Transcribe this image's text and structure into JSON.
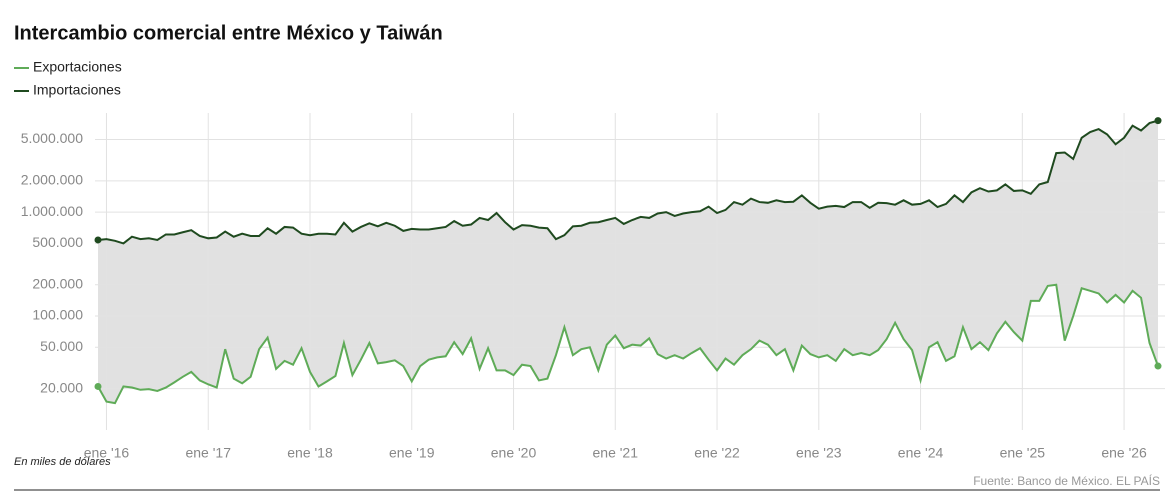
{
  "chart_data": {
    "type": "line",
    "title": "Intercambio comercial entre México y Taiwán",
    "note": "En miles de dólares",
    "source": "Fuente: Banco de México. EL PAÍS",
    "log_scale": true,
    "grid": true,
    "legend": "top-left",
    "fill_between": "#e1e1e1",
    "x": [
      "2015-12",
      "2016-01",
      "2016-02",
      "2016-03",
      "2016-04",
      "2016-05",
      "2016-06",
      "2016-07",
      "2016-08",
      "2016-09",
      "2016-10",
      "2016-11",
      "2016-12",
      "2017-01",
      "2017-02",
      "2017-03",
      "2017-04",
      "2017-05",
      "2017-06",
      "2017-07",
      "2017-08",
      "2017-09",
      "2017-10",
      "2017-11",
      "2017-12",
      "2018-01",
      "2018-02",
      "2018-03",
      "2018-04",
      "2018-05",
      "2018-06",
      "2018-07",
      "2018-08",
      "2018-09",
      "2018-10",
      "2018-11",
      "2018-12",
      "2019-01",
      "2019-02",
      "2019-03",
      "2019-04",
      "2019-05",
      "2019-06",
      "2019-07",
      "2019-08",
      "2019-09",
      "2019-10",
      "2019-11",
      "2019-12",
      "2020-01",
      "2020-02",
      "2020-03",
      "2020-04",
      "2020-05",
      "2020-06",
      "2020-07",
      "2020-08",
      "2020-09",
      "2020-10",
      "2020-11",
      "2020-12",
      "2021-01",
      "2021-02",
      "2021-03",
      "2021-04",
      "2021-05",
      "2021-06",
      "2021-07",
      "2021-08",
      "2021-09",
      "2021-10",
      "2021-11",
      "2021-12",
      "2022-01",
      "2022-02",
      "2022-03",
      "2022-04",
      "2022-05",
      "2022-06",
      "2022-07",
      "2022-08",
      "2022-09",
      "2022-10",
      "2022-11",
      "2022-12",
      "2023-01",
      "2023-02",
      "2023-03",
      "2023-04",
      "2023-05",
      "2023-06",
      "2023-07",
      "2023-08",
      "2023-09",
      "2023-10",
      "2023-11",
      "2023-12",
      "2024-01",
      "2024-02",
      "2024-03",
      "2024-04",
      "2024-05",
      "2024-06",
      "2024-07",
      "2024-08",
      "2024-09",
      "2024-10",
      "2024-11",
      "2024-12",
      "2025-01",
      "2025-02",
      "2025-03",
      "2025-04",
      "2025-05",
      "2025-06",
      "2025-07",
      "2025-08",
      "2025-09",
      "2025-10",
      "2025-11",
      "2025-12",
      "2026-01",
      "2026-02",
      "2026-03",
      "2026-04",
      "2026-05"
    ],
    "xticks": [
      {
        "value": "2016-01",
        "label": "ene '16"
      },
      {
        "value": "2017-01",
        "label": "ene '17"
      },
      {
        "value": "2018-01",
        "label": "ene '18"
      },
      {
        "value": "2019-01",
        "label": "ene '19"
      },
      {
        "value": "2020-01",
        "label": "ene '20"
      },
      {
        "value": "2021-01",
        "label": "ene '21"
      },
      {
        "value": "2022-01",
        "label": "ene '22"
      },
      {
        "value": "2023-01",
        "label": "ene '23"
      },
      {
        "value": "2024-01",
        "label": "ene '24"
      },
      {
        "value": "2025-01",
        "label": "ene '25"
      },
      {
        "value": "2026-01",
        "label": "ene '26"
      }
    ],
    "ylim": [
      8000,
      9000000
    ],
    "yticks": [
      {
        "value": 20000,
        "label": "20.000"
      },
      {
        "value": 50000,
        "label": "50.000"
      },
      {
        "value": 100000,
        "label": "100.000"
      },
      {
        "value": 200000,
        "label": "200.000"
      },
      {
        "value": 500000,
        "label": "500.000"
      },
      {
        "value": 1000000,
        "label": "1.000.000"
      },
      {
        "value": 2000000,
        "label": "2.000.000"
      },
      {
        "value": 5000000,
        "label": "5.000.000"
      }
    ],
    "series": [
      {
        "name": "Exportaciones",
        "color": "#5fab58",
        "values": [
          21000,
          15000,
          14500,
          21000,
          20500,
          19500,
          19800,
          19000,
          20500,
          23000,
          26000,
          29000,
          24000,
          22000,
          20500,
          48000,
          25000,
          22500,
          26000,
          48000,
          62000,
          31000,
          37000,
          34000,
          49000,
          29000,
          21000,
          23500,
          26500,
          55000,
          27000,
          38000,
          55000,
          35000,
          36000,
          37500,
          33000,
          23500,
          33000,
          38000,
          40000,
          41000,
          56000,
          43000,
          61000,
          31000,
          49000,
          30000,
          30000,
          27000,
          34000,
          33000,
          24000,
          25000,
          42000,
          78000,
          42000,
          48000,
          50000,
          30000,
          53000,
          65000,
          49000,
          53000,
          52000,
          61000,
          43000,
          39000,
          42000,
          39000,
          44000,
          49000,
          38000,
          30000,
          39000,
          34000,
          42000,
          48000,
          58000,
          53000,
          42000,
          48000,
          30000,
          52000,
          43000,
          40000,
          42000,
          37000,
          48000,
          42000,
          44000,
          42000,
          47000,
          60000,
          86000,
          60000,
          47000,
          24000,
          50000,
          56000,
          37000,
          41000,
          78000,
          48000,
          56000,
          47000,
          68000,
          88000,
          70000,
          58000,
          140000,
          140000,
          195000,
          200000,
          58000,
          100000,
          185000,
          175000,
          165000,
          135000,
          160000,
          135000,
          175000,
          150000,
          55000,
          33000
        ]
      },
      {
        "name": "Importaciones",
        "color": "#1f4a1f",
        "values": [
          540000,
          550000,
          530000,
          500000,
          580000,
          550000,
          560000,
          540000,
          610000,
          610000,
          640000,
          670000,
          590000,
          560000,
          570000,
          650000,
          580000,
          620000,
          590000,
          590000,
          700000,
          620000,
          720000,
          710000,
          620000,
          600000,
          620000,
          620000,
          610000,
          790000,
          650000,
          720000,
          780000,
          730000,
          790000,
          740000,
          660000,
          690000,
          680000,
          680000,
          700000,
          720000,
          820000,
          740000,
          760000,
          880000,
          840000,
          980000,
          800000,
          680000,
          750000,
          740000,
          710000,
          700000,
          550000,
          600000,
          730000,
          740000,
          790000,
          800000,
          840000,
          880000,
          770000,
          840000,
          900000,
          880000,
          970000,
          1000000,
          920000,
          970000,
          1000000,
          1020000,
          1130000,
          980000,
          1050000,
          1250000,
          1180000,
          1350000,
          1250000,
          1230000,
          1300000,
          1250000,
          1260000,
          1450000,
          1230000,
          1080000,
          1130000,
          1150000,
          1120000,
          1250000,
          1250000,
          1100000,
          1230000,
          1220000,
          1180000,
          1300000,
          1180000,
          1200000,
          1300000,
          1120000,
          1200000,
          1450000,
          1250000,
          1550000,
          1700000,
          1580000,
          1620000,
          1850000,
          1600000,
          1620000,
          1500000,
          1850000,
          1950000,
          3700000,
          3750000,
          3250000,
          5200000,
          5900000,
          6300000,
          5600000,
          4500000,
          5200000,
          6800000,
          6100000,
          7200000,
          7600000
        ]
      }
    ]
  }
}
